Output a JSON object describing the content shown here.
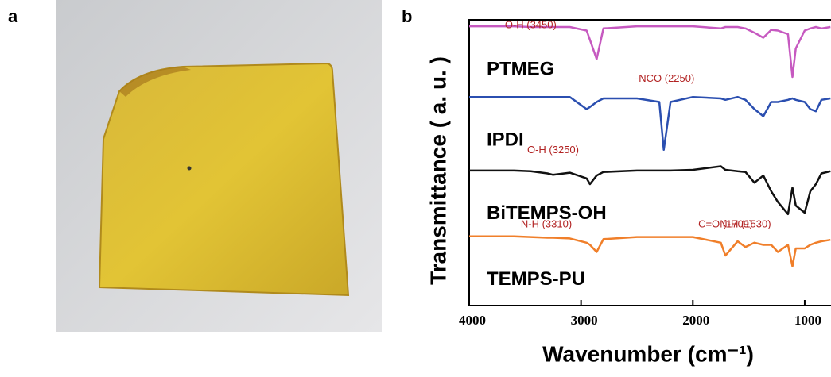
{
  "figure": {
    "panel_a_label": "a",
    "panel_b_label": "b"
  },
  "chart_data": {
    "type": "line",
    "xlabel": "Wavenumber (cm⁻¹)",
    "ylabel": "Transmittance ( a. u. )",
    "xlim": [
      4000,
      765
    ],
    "xticks": [
      4000,
      3000,
      2000,
      1000
    ],
    "ylim": [
      0,
      4
    ],
    "x": [
      4000,
      3600,
      3450,
      3300,
      3250,
      3100,
      2950,
      2920,
      2860,
      2800,
      2500,
      2300,
      2260,
      2200,
      2000,
      1750,
      1709,
      1600,
      1530,
      1450,
      1370,
      1300,
      1240,
      1150,
      1110,
      1080,
      1000,
      950,
      900,
      850,
      770
    ],
    "series": [
      {
        "name": "PTMEG",
        "color": "#c659c0",
        "values": [
          3.91,
          3.91,
          3.9,
          3.9,
          3.9,
          3.9,
          3.85,
          3.72,
          3.45,
          3.88,
          3.91,
          3.91,
          3.91,
          3.91,
          3.91,
          3.88,
          3.9,
          3.9,
          3.88,
          3.82,
          3.75,
          3.86,
          3.85,
          3.8,
          3.2,
          3.6,
          3.85,
          3.88,
          3.9,
          3.88,
          3.9
        ]
      },
      {
        "name": "IPDI",
        "color": "#2b4fb0",
        "values": [
          2.92,
          2.92,
          2.92,
          2.92,
          2.92,
          2.92,
          2.75,
          2.78,
          2.85,
          2.9,
          2.9,
          2.85,
          2.18,
          2.85,
          2.92,
          2.9,
          2.88,
          2.92,
          2.88,
          2.75,
          2.65,
          2.85,
          2.85,
          2.88,
          2.9,
          2.88,
          2.85,
          2.75,
          2.72,
          2.88,
          2.9
        ]
      },
      {
        "name": "BiTEMPS-OH",
        "color": "#111111",
        "values": [
          1.89,
          1.89,
          1.88,
          1.85,
          1.83,
          1.86,
          1.78,
          1.7,
          1.82,
          1.87,
          1.89,
          1.89,
          1.89,
          1.89,
          1.9,
          1.95,
          1.9,
          1.88,
          1.87,
          1.72,
          1.82,
          1.6,
          1.45,
          1.28,
          1.65,
          1.4,
          1.3,
          1.6,
          1.7,
          1.85,
          1.88
        ]
      },
      {
        "name": "TEMPS-PU",
        "color": "#f07f2a",
        "values": [
          0.97,
          0.97,
          0.96,
          0.95,
          0.95,
          0.94,
          0.88,
          0.85,
          0.75,
          0.93,
          0.96,
          0.96,
          0.96,
          0.96,
          0.96,
          0.88,
          0.7,
          0.9,
          0.82,
          0.88,
          0.85,
          0.85,
          0.75,
          0.85,
          0.55,
          0.8,
          0.8,
          0.85,
          0.88,
          0.9,
          0.92
        ]
      }
    ],
    "annotations": [
      {
        "text": "O-H (3450)",
        "x": 3450,
        "y": 3.92
      },
      {
        "text": "-NCO (2250)",
        "x": 2250,
        "y": 3.17
      },
      {
        "text": "O-H (3250)",
        "x": 3250,
        "y": 2.17
      },
      {
        "text": "N-H (3310)",
        "x": 3310,
        "y": 1.13
      },
      {
        "text": "C=O (1709)",
        "x": 1709,
        "y": 1.13
      },
      {
        "text": "N-H (1530)",
        "x": 1530,
        "y": 1.13
      }
    ]
  }
}
